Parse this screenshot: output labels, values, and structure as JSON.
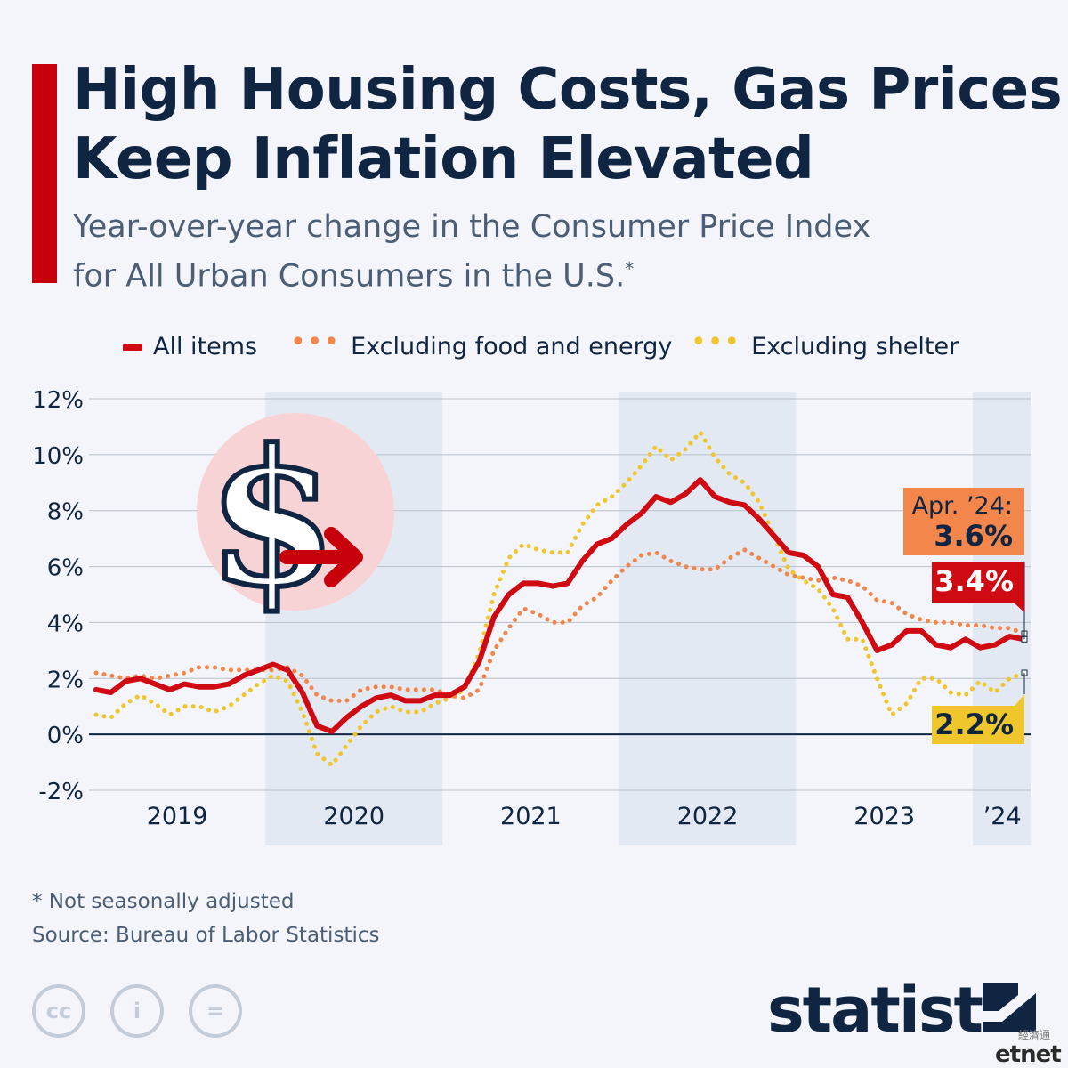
{
  "title": "High Housing Costs, Gas Prices Keep Inflation Elevated",
  "title_line1": "High Housing Costs, Gas Prices",
  "title_line2": "Keep Inflation Elevated",
  "subtitle_line1": "Year-over-year change in the Consumer Price Index",
  "subtitle_line2": "for All Urban Consumers in the U.S.",
  "subtitle_marker": "*",
  "footnote": "* Not seasonally adjusted",
  "source": "Source: Bureau of Labor Statistics",
  "license_icons": [
    "cc",
    "i",
    "="
  ],
  "brand": "statista",
  "watermark": "etnet",
  "watermark_cn": "經濟通",
  "colors": {
    "accent": "#c7000b",
    "all_items": "#cf0a12",
    "core": "#f3864b",
    "ex_shelter": "#f0c62d",
    "band": "#e3e9f3"
  },
  "chart_data": {
    "type": "line",
    "ylim": [
      -2,
      12
    ],
    "yticks": [
      -2,
      0,
      2,
      4,
      6,
      8,
      10,
      12
    ],
    "ytick_labels": [
      "-2%",
      "0%",
      "2%",
      "4%",
      "6%",
      "8%",
      "10%",
      "12%"
    ],
    "year_labels": [
      "2019",
      "2020",
      "2021",
      "2022",
      "2023",
      "’24"
    ],
    "start": "2019-01",
    "end": "2024-04",
    "series": [
      {
        "name": "All items",
        "style": "solid",
        "values": [
          1.6,
          1.5,
          1.9,
          2.0,
          1.8,
          1.6,
          1.8,
          1.7,
          1.7,
          1.8,
          2.1,
          2.3,
          2.5,
          2.3,
          1.5,
          0.3,
          0.1,
          0.6,
          1.0,
          1.3,
          1.4,
          1.2,
          1.2,
          1.4,
          1.4,
          1.7,
          2.6,
          4.2,
          5.0,
          5.4,
          5.4,
          5.3,
          5.4,
          6.2,
          6.8,
          7.0,
          7.5,
          7.9,
          8.5,
          8.3,
          8.6,
          9.1,
          8.5,
          8.3,
          8.2,
          7.7,
          7.1,
          6.5,
          6.4,
          6.0,
          5.0,
          4.9,
          4.0,
          3.0,
          3.2,
          3.7,
          3.7,
          3.2,
          3.1,
          3.4,
          3.1,
          3.2,
          3.5,
          3.4
        ]
      },
      {
        "name": "Excluding food and energy",
        "style": "dotted",
        "values": [
          2.2,
          2.1,
          2.0,
          2.1,
          2.0,
          2.1,
          2.2,
          2.4,
          2.4,
          2.3,
          2.3,
          2.3,
          2.3,
          2.4,
          2.1,
          1.4,
          1.2,
          1.2,
          1.6,
          1.7,
          1.7,
          1.6,
          1.6,
          1.6,
          1.4,
          1.3,
          1.6,
          3.0,
          3.8,
          4.5,
          4.3,
          4.0,
          4.0,
          4.6,
          4.9,
          5.5,
          6.0,
          6.4,
          6.5,
          6.2,
          6.0,
          5.9,
          5.9,
          6.3,
          6.6,
          6.3,
          6.0,
          5.7,
          5.6,
          5.5,
          5.6,
          5.5,
          5.3,
          4.8,
          4.7,
          4.3,
          4.1,
          4.0,
          4.0,
          3.9,
          3.9,
          3.8,
          3.8,
          3.6
        ]
      },
      {
        "name": "Excluding shelter",
        "style": "dotted",
        "values": [
          0.7,
          0.6,
          1.1,
          1.4,
          1.1,
          0.7,
          1.0,
          1.0,
          0.8,
          1.0,
          1.4,
          1.8,
          2.1,
          1.9,
          0.8,
          -0.7,
          -1.1,
          -0.4,
          0.3,
          0.8,
          1.0,
          0.8,
          0.8,
          1.1,
          1.3,
          1.6,
          2.9,
          5.0,
          6.3,
          6.8,
          6.6,
          6.5,
          6.5,
          7.5,
          8.2,
          8.5,
          9.0,
          9.6,
          10.3,
          9.8,
          10.2,
          10.8,
          9.9,
          9.3,
          9.0,
          8.3,
          7.1,
          5.9,
          5.5,
          5.2,
          4.5,
          3.4,
          3.4,
          2.0,
          0.7,
          1.1,
          2.0,
          2.0,
          1.5,
          1.4,
          1.9,
          1.5,
          2.0,
          2.2
        ]
      }
    ],
    "callouts": {
      "date_label": "Apr. ’24:",
      "core_label": "3.6%",
      "all_items_label": "3.4%",
      "ex_shelter_label": "2.2%"
    },
    "grid": true,
    "legend_position": "top"
  }
}
